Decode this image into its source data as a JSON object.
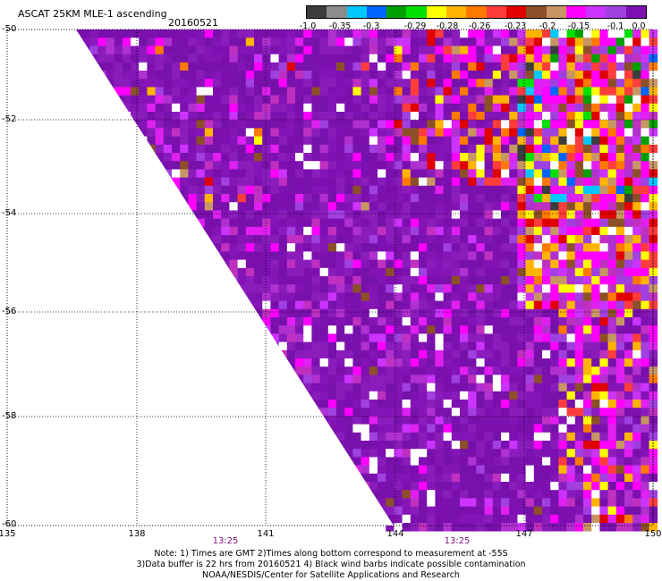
{
  "header": {
    "title": "ASCAT 25KM MLE-1 ascending",
    "date": "20160521"
  },
  "colorbar": {
    "colors": [
      "#3c3c3c",
      "#8c8c8c",
      "#00c8ff",
      "#0064ff",
      "#00a000",
      "#00e000",
      "#ffff00",
      "#ffb400",
      "#ff7800",
      "#ff3c3c",
      "#e00000",
      "#8c5028",
      "#c89664",
      "#ff00ff",
      "#cc33ff",
      "#a040e0",
      "#7c10b0"
    ],
    "labels": [
      "-1.0",
      "-0.35",
      "-0.3",
      "-0.29",
      "-0.28",
      "-0.26",
      "-0.23",
      "-0.2",
      "-0.15",
      "-0.1",
      "0.0"
    ]
  },
  "axes": {
    "y_ticks": [
      "-50",
      "-52",
      "-54",
      "-56",
      "-58",
      "-60"
    ],
    "x_ticks": [
      "135",
      "138",
      "141",
      "144",
      "147",
      "150"
    ],
    "times": [
      "13:25",
      "13:25"
    ]
  },
  "notes": {
    "line1": "Note: 1) Times are GMT 2)Times along bottom correspond to measurement at -55S",
    "line2": "3)Data buffer is 22 hrs from 20160521 4) Black wind barbs indicate possible contamination",
    "line3": "NOAA/NESDIS/Center for Satellite Applications and Research"
  }
}
